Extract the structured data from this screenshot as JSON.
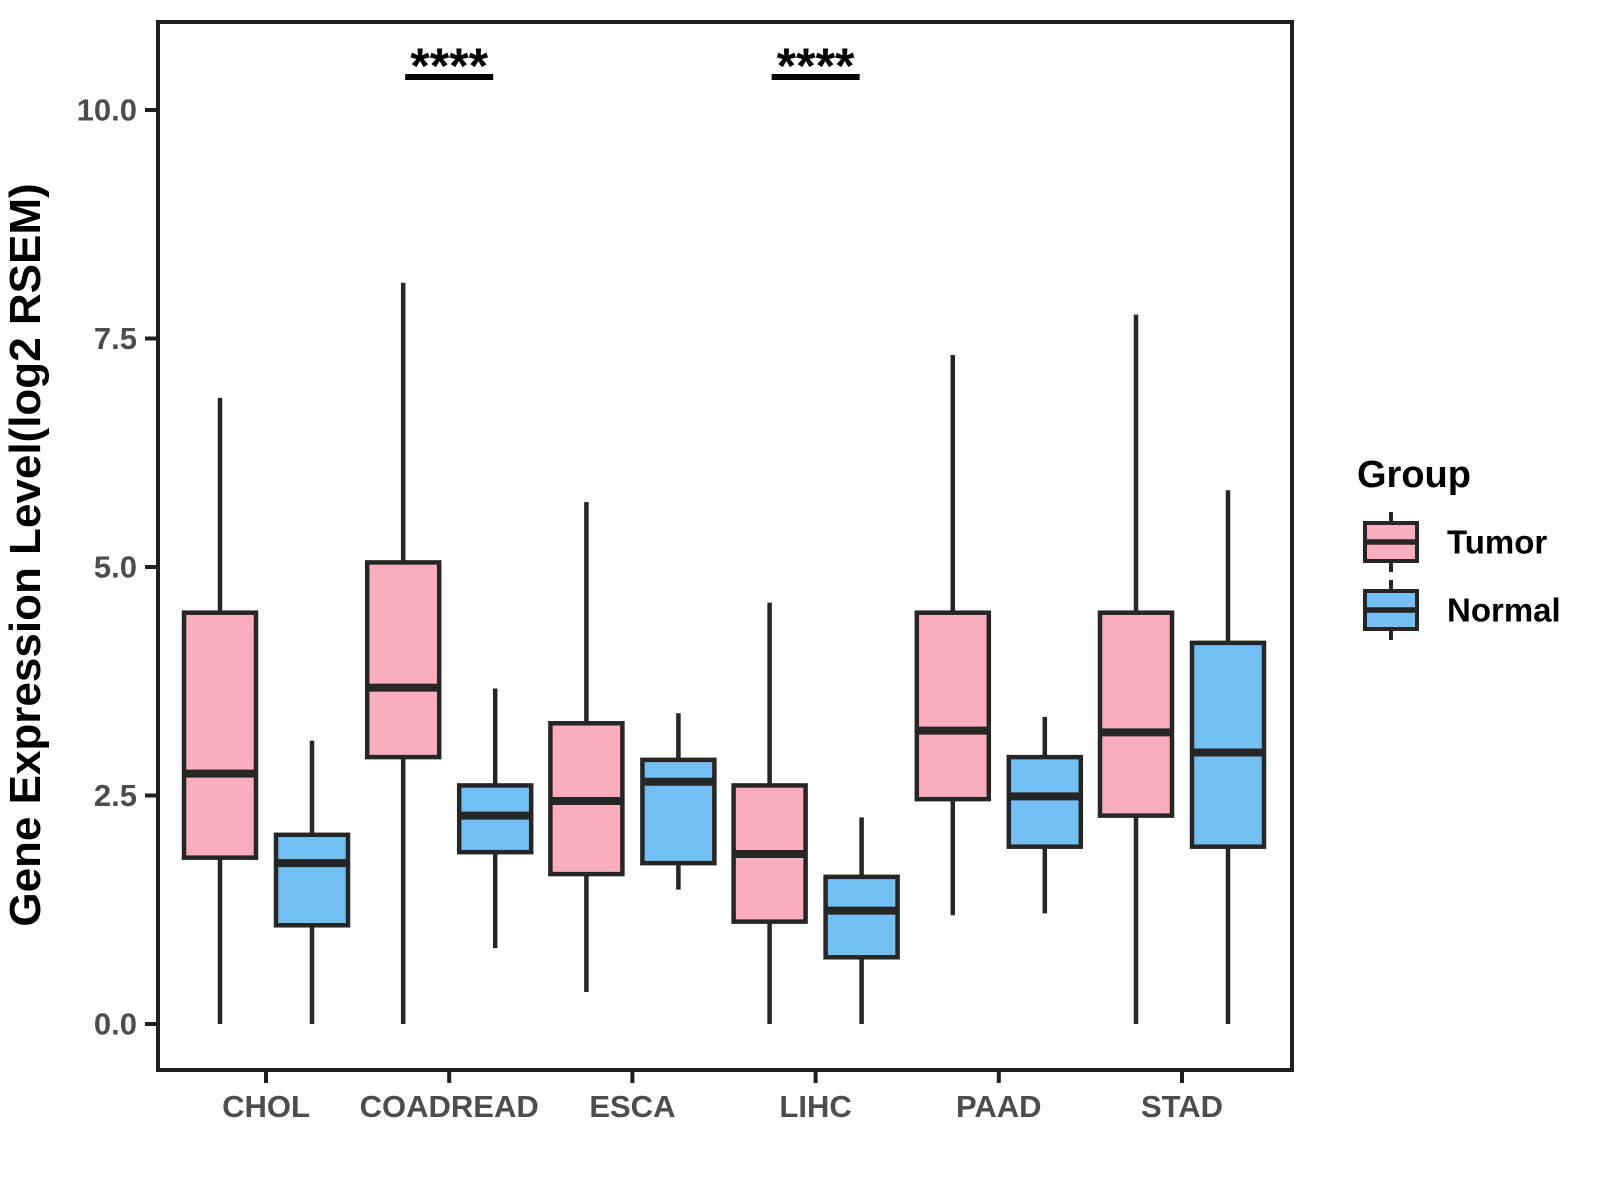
{
  "figure": {
    "background": "#ffffff"
  },
  "chart_data": {
    "type": "boxplot",
    "title": "",
    "xlabel": "",
    "ylabel": "Gene Expression Level(log2 RSEM)",
    "categories": [
      "CHOL",
      "COADREAD",
      "ESCA",
      "LIHC",
      "PAAD",
      "STAD"
    ],
    "yticks": {
      "values": [
        0.0,
        2.5,
        5.0,
        7.5,
        10.0
      ],
      "labels": [
        "0.0",
        "2.5",
        "5.0",
        "7.5",
        "10.0"
      ]
    },
    "ylim": [
      -0.5,
      10.96
    ],
    "grid": false,
    "legend": {
      "title": "Group",
      "position": "right",
      "entries": [
        {
          "name": "tumor",
          "label": "Tumor",
          "color": "#FAAEBD"
        },
        {
          "name": "normal",
          "label": "Normal",
          "color": "#74BFF4"
        }
      ]
    },
    "series": [
      {
        "name": "Tumor",
        "color": "#FAAEBD",
        "stats": [
          {
            "category": "CHOL",
            "low": 0.0,
            "q1": 1.82,
            "median": 2.74,
            "q3": 4.5,
            "high": 6.85
          },
          {
            "category": "COADREAD",
            "low": 0.0,
            "q1": 2.92,
            "median": 3.68,
            "q3": 5.05,
            "high": 8.11
          },
          {
            "category": "ESCA",
            "low": 0.35,
            "q1": 1.64,
            "median": 2.44,
            "q3": 3.29,
            "high": 5.71
          },
          {
            "category": "LIHC",
            "low": 0.0,
            "q1": 1.12,
            "median": 1.86,
            "q3": 2.61,
            "high": 4.61
          },
          {
            "category": "PAAD",
            "low": 1.19,
            "q1": 2.46,
            "median": 3.21,
            "q3": 4.5,
            "high": 7.32
          },
          {
            "category": "STAD",
            "low": 0.0,
            "q1": 2.28,
            "median": 3.19,
            "q3": 4.5,
            "high": 7.76
          }
        ]
      },
      {
        "name": "Normal",
        "color": "#74BFF4",
        "stats": [
          {
            "category": "CHOL",
            "low": 0.0,
            "q1": 1.08,
            "median": 1.76,
            "q3": 2.07,
            "high": 3.1
          },
          {
            "category": "COADREAD",
            "low": 0.83,
            "q1": 1.88,
            "median": 2.28,
            "q3": 2.61,
            "high": 3.67
          },
          {
            "category": "ESCA",
            "low": 1.47,
            "q1": 1.76,
            "median": 2.65,
            "q3": 2.89,
            "high": 3.4
          },
          {
            "category": "LIHC",
            "low": 0.0,
            "q1": 0.73,
            "median": 1.24,
            "q3": 1.61,
            "high": 2.26
          },
          {
            "category": "PAAD",
            "low": 1.21,
            "q1": 1.94,
            "median": 2.49,
            "q3": 2.92,
            "high": 3.36
          },
          {
            "category": "STAD",
            "low": 0.0,
            "q1": 1.94,
            "median": 2.97,
            "q3": 4.17,
            "high": 5.84
          }
        ]
      }
    ],
    "annotations": [
      {
        "category": "COADREAD",
        "label": "****"
      },
      {
        "category": "LIHC",
        "label": "****"
      }
    ],
    "style": {
      "box_border_color": "#262626",
      "axis_color": "#1f1f1f",
      "tick_label_color": "#4d4d4d",
      "axis_title_color": "#000000",
      "annotation_color": "#000000",
      "legend_text_color": "#000000"
    }
  }
}
